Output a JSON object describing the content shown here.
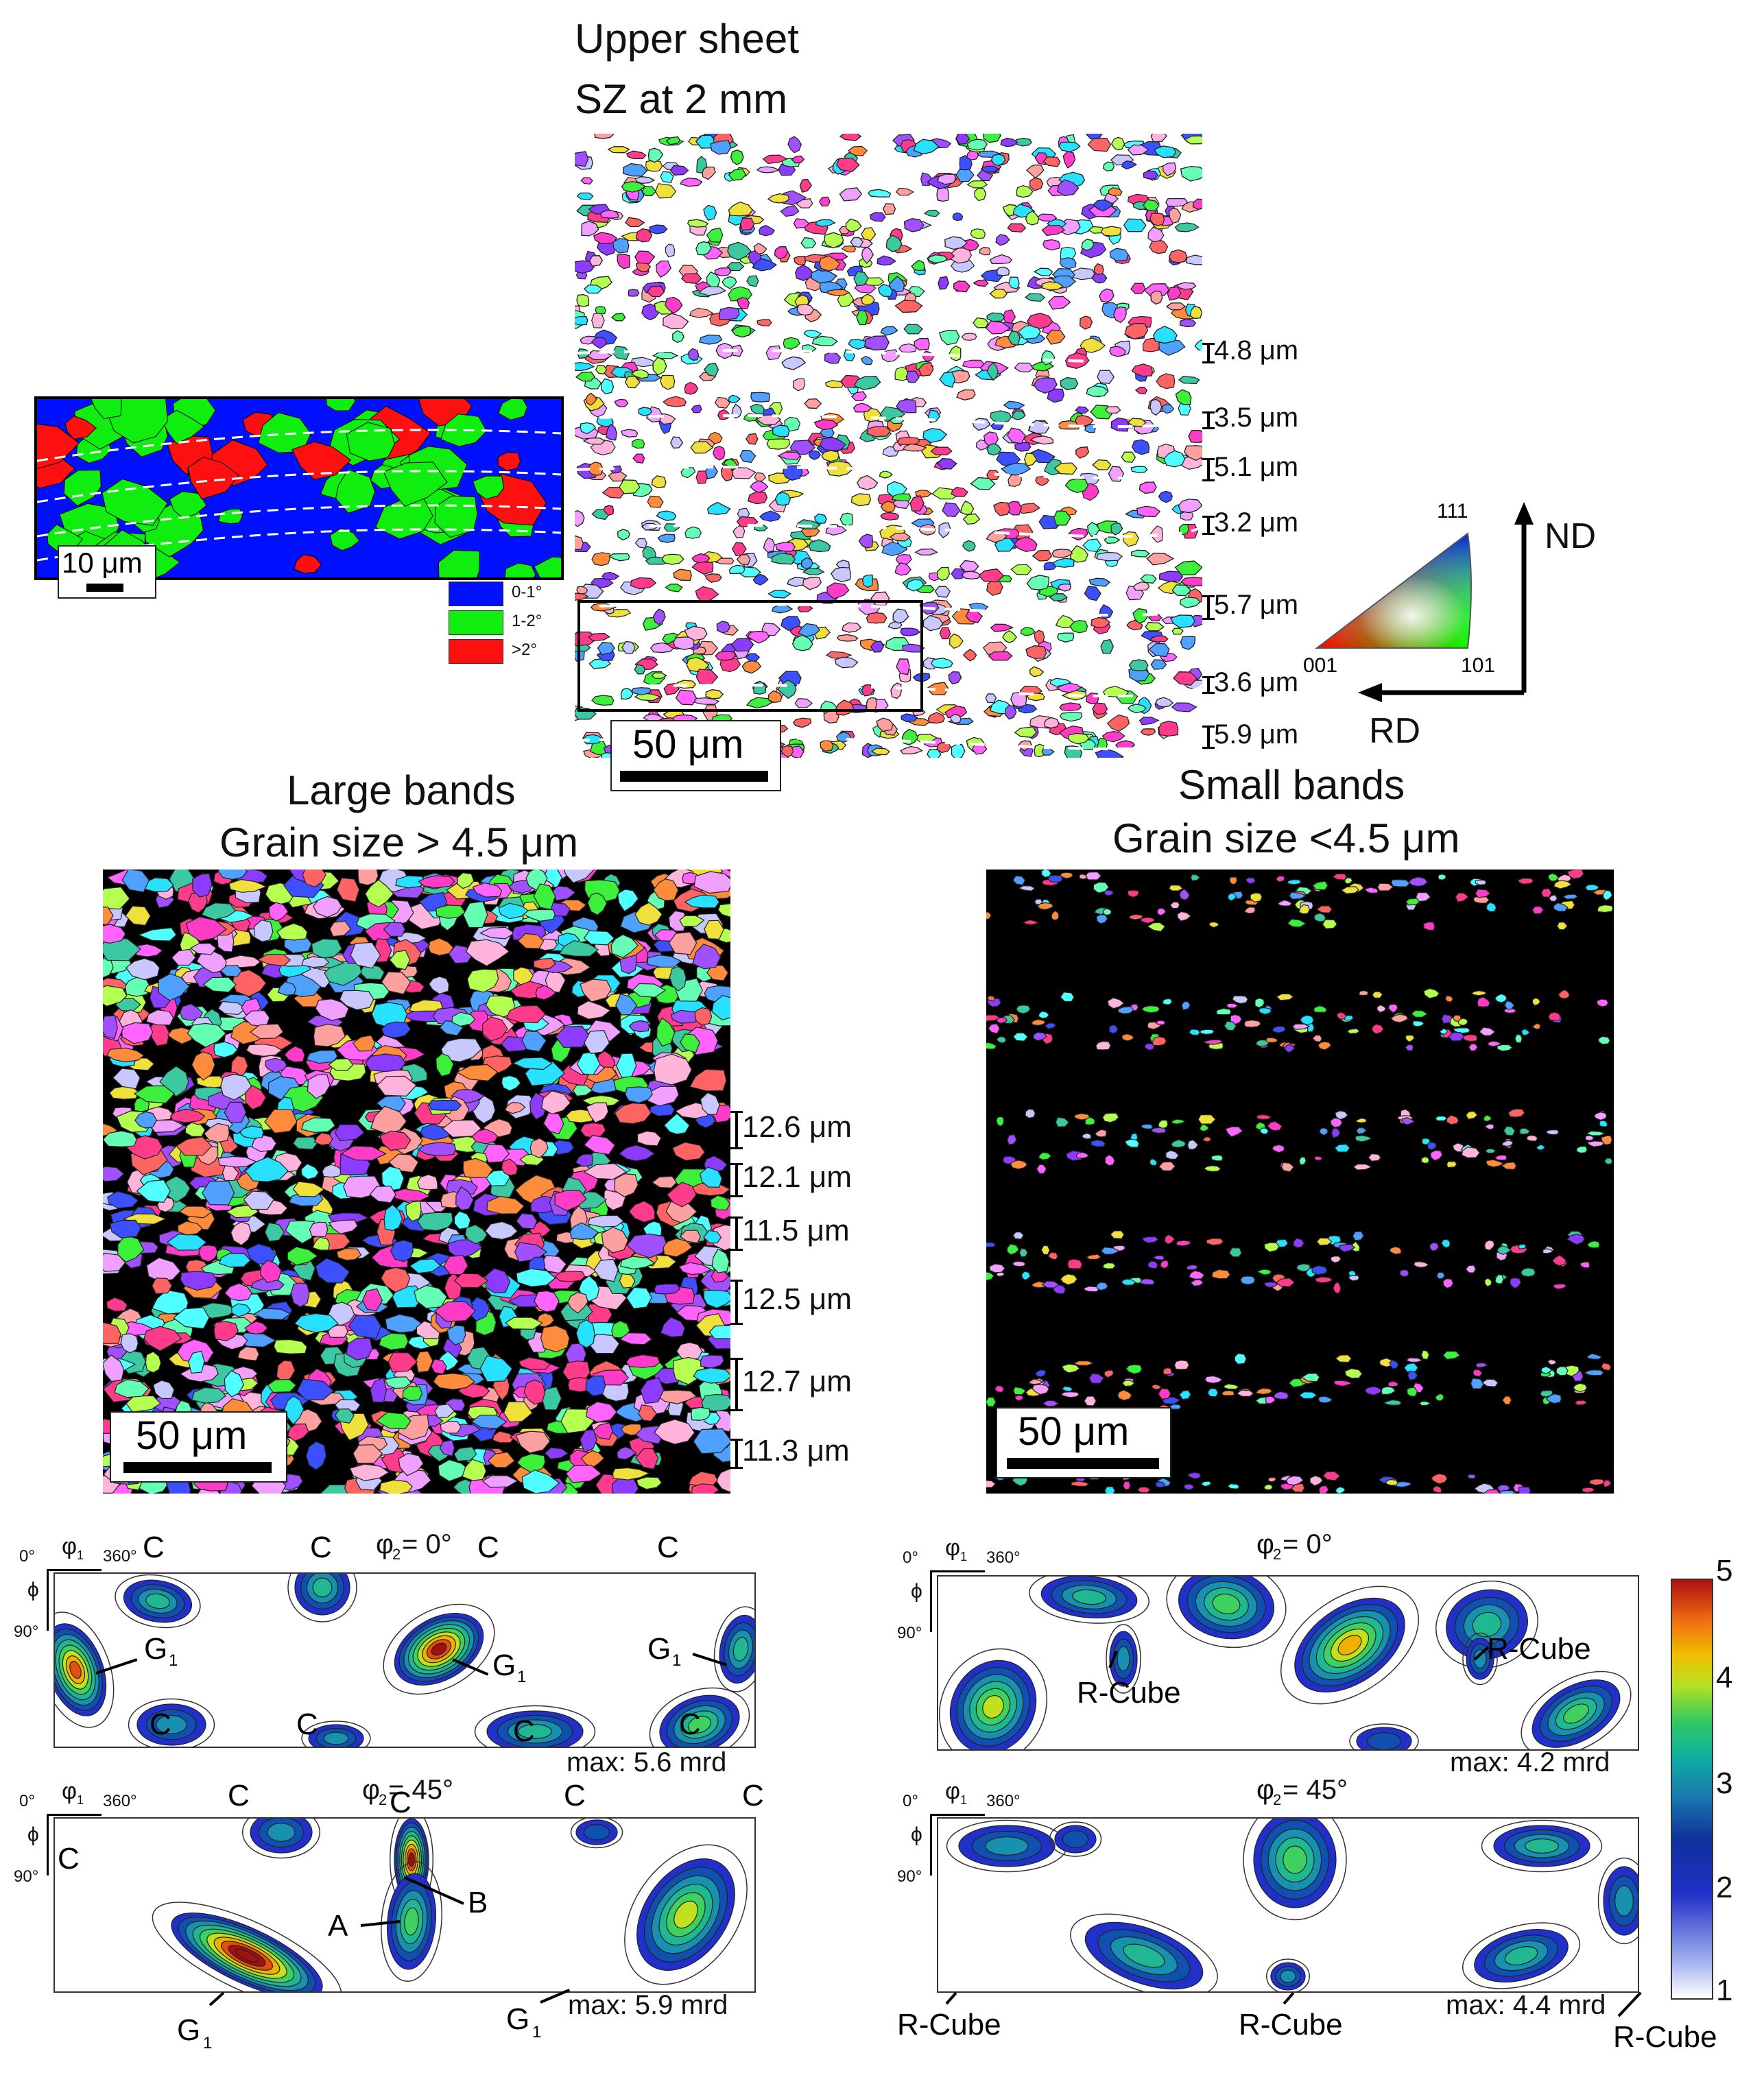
{
  "top": {
    "title_line1": "Upper sheet",
    "title_line2": "SZ at 2 mm",
    "scale": "50 μm",
    "bands": [
      "4.8 μm",
      "3.5 μm",
      "5.1 μm",
      "3.2 μm",
      "5.7 μm",
      "3.6 μm",
      "5.9 μm"
    ]
  },
  "inset": {
    "scale": "10 μm",
    "legend": [
      {
        "label": "0-1°",
        "color": "#0010ff"
      },
      {
        "label": "1-2°",
        "color": "#10ee10"
      },
      {
        "label": ">2°",
        "color": "#ff1010"
      }
    ]
  },
  "ipf": {
    "v111": "111",
    "v001": "001",
    "v101": "101",
    "nd": "ND",
    "rd": "RD"
  },
  "large": {
    "title_line1": "Large bands",
    "title_line2": "Grain size > 4.5 μm",
    "scale": "50 μm",
    "bands": [
      "12.6 μm",
      "12.1 μm",
      "11.5 μm",
      "12.5 μm",
      "12.7 μm",
      "11.3 μm"
    ]
  },
  "small": {
    "title_line1": "Small bands",
    "title_line2": "Grain size <4.5 μm",
    "scale": "50 μm"
  },
  "odf": {
    "axis_phi1": "φ",
    "axis_phi1_sub": "1",
    "axis_0": "0°",
    "axis_360": "360°",
    "axis_phi": "ϕ",
    "axis_90": "90°",
    "left_top": {
      "phi2": "φ",
      "phi2_sub": "2",
      "phi2_val": "= 0°",
      "max": "max: 5.6 mrd",
      "labels": [
        "C",
        "C",
        "C",
        "C",
        "G",
        "G",
        "G",
        "C",
        "C",
        "C",
        "C"
      ],
      "sub1": "1"
    },
    "left_bottom": {
      "phi2_val": "= 45°",
      "max": "max: 5.9 mrd",
      "labels": [
        "C",
        "C",
        "C",
        "C",
        "C",
        "A",
        "B",
        "G",
        "G"
      ]
    },
    "right_top": {
      "phi2_val": "= 0°",
      "max": "max: 4.2 mrd",
      "labels": [
        "R-Cube",
        "R-Cube"
      ]
    },
    "right_bottom": {
      "phi2_val": "= 45°",
      "max": "max: 4.4 mrd",
      "labels": [
        "R-Cube",
        "R-Cube",
        "R-Cube"
      ]
    },
    "colorbar": [
      "5",
      "4",
      "3",
      "2",
      "1"
    ]
  }
}
